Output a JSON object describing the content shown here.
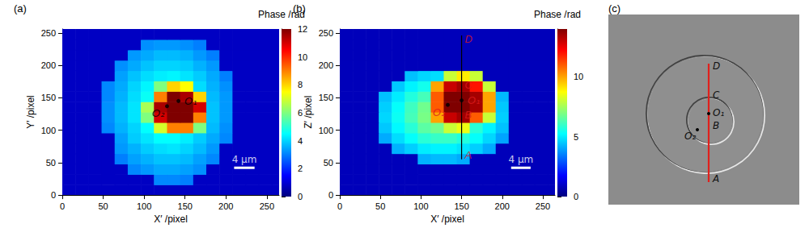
{
  "chart_data": [
    {
      "type": "heatmap",
      "title": "(a)",
      "x_label": "X′ /pixel",
      "y_label": "Y′ /pixel",
      "xlim": [
        0,
        265
      ],
      "ylim": [
        0,
        256
      ],
      "xticks": [
        0,
        50,
        100,
        150,
        200,
        250
      ],
      "yticks": [
        0,
        50,
        100,
        150,
        200,
        250
      ],
      "grid": false,
      "x": [
        8,
        24,
        40,
        56,
        72,
        88,
        104,
        120,
        136,
        152,
        168,
        184,
        200,
        216,
        232,
        248,
        264
      ],
      "y": [
        8,
        24,
        40,
        56,
        72,
        88,
        104,
        120,
        136,
        152,
        168,
        184,
        200,
        216,
        232,
        248
      ],
      "cells": [
        [
          0.8,
          0.8,
          0.8,
          0.8,
          0.8,
          0.8,
          0.8,
          0.8,
          0.8,
          0.8,
          0.8,
          0.8,
          0.8,
          0.8,
          0.8,
          0.8,
          0.8
        ],
        [
          0.8,
          0.8,
          0.8,
          0.8,
          0.8,
          0.8,
          0.8,
          3.1,
          3.1,
          3.0,
          0.8,
          0.8,
          0.8,
          0.8,
          0.8,
          0.8,
          0.8
        ],
        [
          0.8,
          0.8,
          0.8,
          0.8,
          0.8,
          3.1,
          3.3,
          3.5,
          3.5,
          3.4,
          3.2,
          0.8,
          0.8,
          0.8,
          0.8,
          0.8,
          0.8
        ],
        [
          0.8,
          0.8,
          0.8,
          0.8,
          3.0,
          3.4,
          3.6,
          3.8,
          3.8,
          3.7,
          3.4,
          3.1,
          0.8,
          0.8,
          0.8,
          0.8,
          0.8
        ],
        [
          0.8,
          0.8,
          0.8,
          0.8,
          3.3,
          3.6,
          3.9,
          4.1,
          4.2,
          4.0,
          3.7,
          3.3,
          0.8,
          0.8,
          0.8,
          0.8,
          0.8
        ],
        [
          0.8,
          0.8,
          0.8,
          0.8,
          3.4,
          3.9,
          4.2,
          4.5,
          4.5,
          4.3,
          3.9,
          3.5,
          3.1,
          0.8,
          0.8,
          0.8,
          0.8
        ],
        [
          0.8,
          0.8,
          0.8,
          3.1,
          3.6,
          4.0,
          4.5,
          7,
          9,
          9,
          6,
          3.7,
          3.2,
          0.8,
          0.8,
          0.8,
          0.8
        ],
        [
          0.8,
          0.8,
          0.8,
          3.2,
          3.7,
          4.2,
          6,
          11,
          12,
          12,
          9,
          3.8,
          3.3,
          0.8,
          0.8,
          0.8,
          0.8
        ],
        [
          0.8,
          0.8,
          0.8,
          3.2,
          3.7,
          4.2,
          6.5,
          11.5,
          12,
          12,
          11,
          3.8,
          3.3,
          0.8,
          0.8,
          0.8,
          0.8
        ],
        [
          0.8,
          0.8,
          0.8,
          3.1,
          3.6,
          4.1,
          4.6,
          9,
          12,
          11.5,
          8,
          3.7,
          3.3,
          0.8,
          0.8,
          0.8,
          0.8
        ],
        [
          0.8,
          0.8,
          0.8,
          3.1,
          3.5,
          4.0,
          4.4,
          6,
          8,
          7.5,
          4.1,
          3.6,
          3.2,
          0.8,
          0.8,
          0.8,
          0.8
        ],
        [
          0.8,
          0.8,
          0.8,
          0.8,
          3.4,
          3.8,
          4.1,
          4.3,
          4.4,
          4.2,
          3.9,
          3.5,
          3.0,
          0.8,
          0.8,
          0.8,
          0.8
        ],
        [
          0.8,
          0.8,
          0.8,
          0.8,
          3.2,
          3.5,
          3.8,
          4.0,
          4.0,
          3.9,
          3.6,
          3.3,
          0.8,
          0.8,
          0.8,
          0.8,
          0.8
        ],
        [
          0.8,
          0.8,
          0.8,
          0.8,
          0.8,
          3.3,
          3.5,
          3.7,
          3.7,
          3.6,
          3.3,
          3.0,
          0.8,
          0.8,
          0.8,
          0.8,
          0.8
        ],
        [
          0.8,
          0.8,
          0.8,
          0.8,
          0.8,
          0.8,
          3.2,
          3.3,
          3.3,
          3.2,
          3.0,
          0.8,
          0.8,
          0.8,
          0.8,
          0.8,
          0.8
        ],
        [
          0.8,
          0.8,
          0.8,
          0.8,
          0.8,
          0.8,
          0.8,
          0.8,
          0.8,
          0.8,
          0.8,
          0.8,
          0.8,
          0.8,
          0.8,
          0.8,
          0.8
        ]
      ],
      "colorbar_title": "Phase /rad",
      "colorbar_lim": [
        0,
        12
      ],
      "colorbar_ticks": [
        0,
        2,
        4,
        6,
        8,
        10,
        12
      ],
      "points": [
        {
          "label": "O₁",
          "x": 142,
          "y": 145,
          "color": "#000000"
        },
        {
          "label": "O₂",
          "x": 128,
          "y": 137,
          "color": "#000000"
        }
      ],
      "scale_bar": {
        "label": "4 μm",
        "x": [
          210,
          235
        ],
        "y": 42,
        "color": "#ffffff"
      }
    },
    {
      "type": "heatmap",
      "title": "(b)",
      "x_label": "X′ /pixel",
      "y_label": "Z′ /pixel",
      "xlim": [
        0,
        265
      ],
      "ylim": [
        0,
        256
      ],
      "xticks": [
        0,
        50,
        100,
        150,
        200,
        250
      ],
      "yticks": [
        0,
        50,
        100,
        150,
        200,
        250
      ],
      "grid": false,
      "x": [
        8,
        24,
        40,
        56,
        72,
        88,
        104,
        120,
        136,
        152,
        168,
        184,
        200,
        216,
        232,
        248,
        264
      ],
      "y": [
        8,
        24,
        40,
        56,
        72,
        88,
        104,
        120,
        136,
        152,
        168,
        184,
        200,
        216,
        232,
        248
      ],
      "cells": [
        [
          0.8,
          0.8,
          0.8,
          0.8,
          0.8,
          0.8,
          0.8,
          0.8,
          0.8,
          0.8,
          0.8,
          0.8,
          0.8,
          0.8,
          0.8,
          0.8,
          0.8
        ],
        [
          0.8,
          0.8,
          0.8,
          0.8,
          0.8,
          0.8,
          0.8,
          0.8,
          0.8,
          0.8,
          0.8,
          0.8,
          0.8,
          0.8,
          0.8,
          0.8,
          0.8
        ],
        [
          0.8,
          0.8,
          0.8,
          0.8,
          0.8,
          0.8,
          0.8,
          0.8,
          0.8,
          0.8,
          0.8,
          0.8,
          0.8,
          0.8,
          0.8,
          0.8,
          0.8
        ],
        [
          0.8,
          0.8,
          0.8,
          0.8,
          0.8,
          0.8,
          4.2,
          4.3,
          4.3,
          4.1,
          0.8,
          0.8,
          0.8,
          0.8,
          0.8,
          0.8,
          0.8
        ],
        [
          0.8,
          0.8,
          0.8,
          0.8,
          4.2,
          4.6,
          5.0,
          5.1,
          5.1,
          4.9,
          4.6,
          4.1,
          0.8,
          0.8,
          0.8,
          0.8,
          0.8
        ],
        [
          0.8,
          0.8,
          0.8,
          4.1,
          4.8,
          5.3,
          5.8,
          6.0,
          6.0,
          5.7,
          5.3,
          4.7,
          4.0,
          0.8,
          0.8,
          0.8,
          0.8
        ],
        [
          0.8,
          0.8,
          0.8,
          4.5,
          5.2,
          5.8,
          6.5,
          6.8,
          8,
          8.5,
          5.8,
          5.1,
          4.4,
          0.8,
          0.8,
          0.8,
          0.8
        ],
        [
          0.8,
          0.8,
          0.8,
          4.7,
          5.4,
          6.2,
          6.9,
          10,
          13,
          13.5,
          11,
          8,
          4.6,
          0.8,
          0.8,
          0.8,
          0.8
        ],
        [
          0.8,
          0.8,
          0.8,
          4.6,
          5.3,
          6.1,
          6.8,
          11,
          14,
          14,
          13.5,
          10,
          4.5,
          0.8,
          0.8,
          0.8,
          0.8
        ],
        [
          0.8,
          0.8,
          0.8,
          4.4,
          5.0,
          5.7,
          6.2,
          11,
          14,
          14,
          13.5,
          10,
          4.3,
          0.8,
          0.8,
          0.8,
          0.8
        ],
        [
          0.8,
          0.8,
          0.8,
          0.8,
          4.5,
          5.1,
          5.5,
          10,
          13,
          13.5,
          12,
          8,
          0.8,
          0.8,
          0.8,
          0.8,
          0.8
        ],
        [
          0.8,
          0.8,
          0.8,
          0.8,
          0.8,
          4.4,
          4.7,
          4.8,
          8,
          9,
          8,
          0.8,
          0.8,
          0.8,
          0.8,
          0.8,
          0.8
        ],
        [
          0.8,
          0.8,
          0.8,
          0.8,
          0.8,
          0.8,
          0.8,
          0.8,
          0.8,
          0.8,
          0.8,
          0.8,
          0.8,
          0.8,
          0.8,
          0.8,
          0.8
        ],
        [
          0.8,
          0.8,
          0.8,
          0.8,
          0.8,
          0.8,
          0.8,
          0.8,
          0.8,
          0.8,
          0.8,
          0.8,
          0.8,
          0.8,
          0.8,
          0.8,
          0.8
        ],
        [
          0.8,
          0.8,
          0.8,
          0.8,
          0.8,
          0.8,
          0.8,
          0.8,
          0.8,
          0.8,
          0.8,
          0.8,
          0.8,
          0.8,
          0.8,
          0.8,
          0.8
        ],
        [
          0.8,
          0.8,
          0.8,
          0.8,
          0.8,
          0.8,
          0.8,
          0.8,
          0.8,
          0.8,
          0.8,
          0.8,
          0.8,
          0.8,
          0.8,
          0.8,
          0.8
        ]
      ],
      "colorbar_title": "Phase /rad",
      "colorbar_lim": [
        0,
        14
      ],
      "colorbar_ticks": [
        0,
        5,
        10
      ],
      "points": [
        {
          "label": "O₁",
          "x": 150,
          "y": 146,
          "color": "#dd1c1c"
        },
        {
          "label": "O₂",
          "x": 133,
          "y": 139,
          "color": "#dd1c1c"
        }
      ],
      "line": {
        "x": [
          150,
          150
        ],
        "y": [
          55,
          246
        ],
        "color": "#000000"
      },
      "marks": [
        {
          "label": "A",
          "x": 150,
          "y": 62,
          "color": "#dd1c1c"
        },
        {
          "label": "B",
          "x": 150,
          "y": 124,
          "color": "#dd1c1c"
        },
        {
          "label": "C",
          "x": 150,
          "y": 170,
          "color": "#dd1c1c"
        },
        {
          "label": "D",
          "x": 150,
          "y": 240,
          "color": "#dd1c1c"
        }
      ],
      "scale_bar": {
        "label": "4 μm",
        "x": [
          211,
          235
        ],
        "y": 42,
        "color": "#ffffff"
      }
    }
  ],
  "panel_c": {
    "title": "(c)",
    "labels": [
      "D",
      "C",
      "O₁",
      "B",
      "O₂",
      "A"
    ],
    "line_color": "#e0201c"
  }
}
